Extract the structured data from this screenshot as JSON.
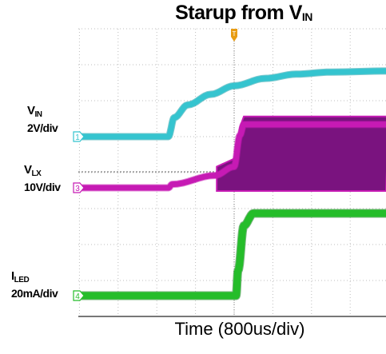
{
  "title": {
    "main": "Starup from V",
    "sub": "IN"
  },
  "xlabel": "Time (800us/div)",
  "trigger_marker": "T",
  "colors": {
    "vin": "#35c4cf",
    "vin_dark": "#0f9aa6",
    "vlx": "#c61ab4",
    "vlx_fill": "#7a137f",
    "iled": "#25bd2a",
    "iled_dark": "#0b7a14",
    "grid": "#bdbdbd",
    "trigger": "#e89c12"
  },
  "channels": [
    {
      "id": "vin",
      "name": "V",
      "sub": "IN",
      "scale": "2V/div",
      "marker": "1"
    },
    {
      "id": "vlx",
      "name": "V",
      "sub": "LX",
      "scale": "10V/div",
      "marker": "3"
    },
    {
      "id": "iled",
      "name": "I",
      "sub": "LED",
      "scale": "20mA/div",
      "marker": "4"
    }
  ],
  "chart_data": {
    "type": "line",
    "title": "Starup from VIN",
    "xlabel": "Time (800us/div)",
    "x_unit": "div",
    "xlim": [
      -4,
      4
    ],
    "grid": true,
    "series": [
      {
        "name": "VIN",
        "scale": "2V/div",
        "x": [
          -4,
          -1.7,
          -1.55,
          -1.2,
          -0.6,
          0,
          0.8,
          1.6,
          2.5,
          4
        ],
        "y_div": [
          0,
          0,
          0.9,
          1.5,
          2.0,
          2.4,
          2.75,
          2.95,
          3.05,
          3.1
        ]
      },
      {
        "name": "VLX",
        "scale": "10V/div",
        "x": [
          -4,
          -1.7,
          -1.6,
          -0.5,
          0,
          0.15,
          0.25,
          4
        ],
        "y_div": [
          0,
          0,
          0.1,
          0.35,
          0.6,
          1.5,
          1.8,
          1.8
        ],
        "switching_from_div": -0.45
      },
      {
        "name": "ILED",
        "scale": "20mA/div",
        "x": [
          -4,
          0.05,
          0.1,
          0.25,
          0.5,
          4
        ],
        "y_div": [
          0,
          0,
          0.6,
          1.7,
          2.0,
          2.0
        ]
      }
    ]
  }
}
